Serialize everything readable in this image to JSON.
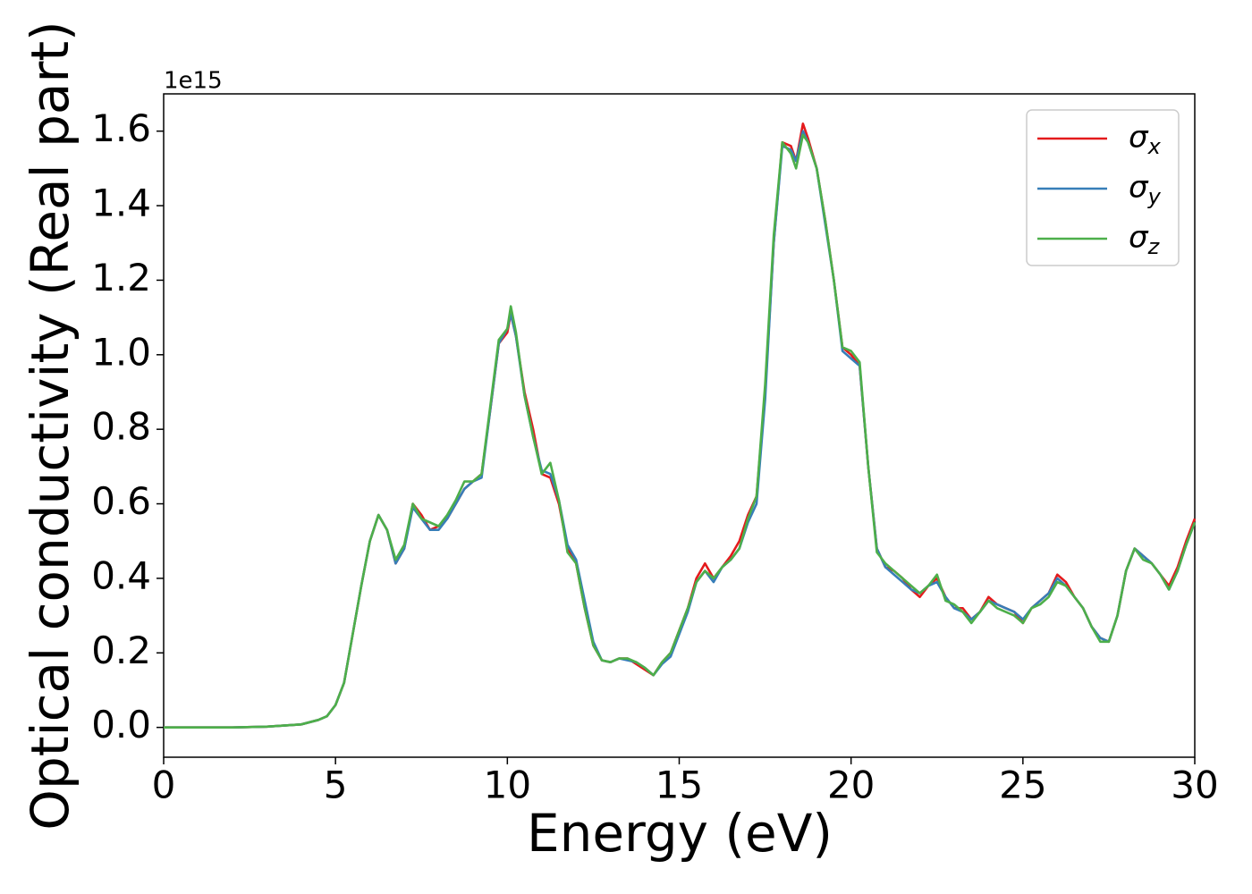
{
  "chart_data": {
    "type": "line",
    "xlabel": "Energy (eV)",
    "ylabel": "Optical conductivity (Real part)",
    "y_offset_label": "1e15",
    "x": [
      0,
      1,
      2,
      3,
      4,
      4.5,
      4.75,
      5,
      5.25,
      5.5,
      5.75,
      6,
      6.25,
      6.5,
      6.75,
      7,
      7.25,
      7.5,
      7.75,
      8,
      8.25,
      8.5,
      8.75,
      9,
      9.25,
      9.5,
      9.75,
      10,
      10.1,
      10.25,
      10.5,
      10.75,
      11,
      11.25,
      11.5,
      11.75,
      12,
      12.25,
      12.5,
      12.75,
      13,
      13.25,
      13.5,
      13.75,
      14,
      14.25,
      14.5,
      14.75,
      15,
      15.25,
      15.5,
      15.75,
      16,
      16.25,
      16.5,
      16.75,
      17,
      17.25,
      17.5,
      17.75,
      18,
      18.25,
      18.4,
      18.6,
      18.75,
      19,
      19.25,
      19.5,
      19.75,
      20,
      20.25,
      20.5,
      20.75,
      21,
      21.25,
      21.5,
      21.75,
      22,
      22.25,
      22.5,
      22.75,
      23,
      23.25,
      23.5,
      23.75,
      24,
      24.25,
      24.5,
      24.75,
      25,
      25.25,
      25.5,
      25.75,
      26,
      26.25,
      26.5,
      26.75,
      27,
      27.25,
      27.5,
      27.75,
      28,
      28.25,
      28.5,
      28.75,
      29,
      29.25,
      29.5,
      29.75,
      30
    ],
    "series": [
      {
        "name": "σx",
        "color": "#e41a1c",
        "values": [
          0,
          0,
          0,
          0.002,
          0.008,
          0.02,
          0.03,
          0.06,
          0.12,
          0.25,
          0.38,
          0.5,
          0.57,
          0.53,
          0.44,
          0.48,
          0.6,
          0.57,
          0.53,
          0.54,
          0.56,
          0.6,
          0.64,
          0.66,
          0.68,
          0.85,
          1.03,
          1.06,
          1.11,
          1.05,
          0.9,
          0.8,
          0.68,
          0.67,
          0.6,
          0.48,
          0.44,
          0.32,
          0.22,
          0.18,
          0.175,
          0.185,
          0.185,
          0.17,
          0.155,
          0.14,
          0.175,
          0.2,
          0.26,
          0.32,
          0.4,
          0.44,
          0.4,
          0.43,
          0.46,
          0.5,
          0.57,
          0.62,
          0.9,
          1.3,
          1.57,
          1.56,
          1.52,
          1.62,
          1.58,
          1.5,
          1.36,
          1.2,
          1.02,
          1.0,
          0.97,
          0.7,
          0.48,
          0.43,
          0.42,
          0.4,
          0.37,
          0.35,
          0.38,
          0.4,
          0.35,
          0.32,
          0.32,
          0.29,
          0.31,
          0.35,
          0.33,
          0.32,
          0.31,
          0.28,
          0.32,
          0.34,
          0.36,
          0.41,
          0.39,
          0.35,
          0.32,
          0.27,
          0.24,
          0.23,
          0.3,
          0.42,
          0.48,
          0.46,
          0.44,
          0.41,
          0.38,
          0.43,
          0.5,
          0.56
        ]
      },
      {
        "name": "σy",
        "color": "#377eb8",
        "values": [
          0,
          0,
          0,
          0.002,
          0.008,
          0.02,
          0.03,
          0.06,
          0.12,
          0.25,
          0.38,
          0.5,
          0.57,
          0.53,
          0.44,
          0.48,
          0.59,
          0.56,
          0.53,
          0.53,
          0.56,
          0.6,
          0.64,
          0.66,
          0.67,
          0.85,
          1.03,
          1.07,
          1.11,
          1.05,
          0.89,
          0.78,
          0.69,
          0.68,
          0.61,
          0.49,
          0.45,
          0.34,
          0.23,
          0.18,
          0.175,
          0.185,
          0.18,
          0.175,
          0.16,
          0.14,
          0.17,
          0.19,
          0.25,
          0.31,
          0.39,
          0.42,
          0.39,
          0.43,
          0.45,
          0.48,
          0.55,
          0.6,
          0.88,
          1.3,
          1.56,
          1.55,
          1.52,
          1.6,
          1.57,
          1.5,
          1.35,
          1.2,
          1.01,
          0.99,
          0.97,
          0.7,
          0.48,
          0.43,
          0.41,
          0.39,
          0.37,
          0.36,
          0.38,
          0.39,
          0.35,
          0.32,
          0.31,
          0.29,
          0.31,
          0.34,
          0.33,
          0.32,
          0.31,
          0.29,
          0.32,
          0.34,
          0.36,
          0.4,
          0.38,
          0.35,
          0.32,
          0.27,
          0.24,
          0.23,
          0.3,
          0.42,
          0.48,
          0.46,
          0.44,
          0.41,
          0.37,
          0.42,
          0.49,
          0.55
        ]
      },
      {
        "name": "σz",
        "color": "#4daf4a",
        "values": [
          0,
          0,
          0,
          0.002,
          0.008,
          0.02,
          0.03,
          0.06,
          0.12,
          0.25,
          0.38,
          0.5,
          0.57,
          0.53,
          0.45,
          0.49,
          0.6,
          0.56,
          0.55,
          0.54,
          0.57,
          0.61,
          0.66,
          0.66,
          0.68,
          0.86,
          1.04,
          1.07,
          1.13,
          1.06,
          0.89,
          0.78,
          0.68,
          0.71,
          0.61,
          0.47,
          0.44,
          0.32,
          0.22,
          0.18,
          0.175,
          0.185,
          0.185,
          0.175,
          0.16,
          0.14,
          0.175,
          0.2,
          0.26,
          0.32,
          0.39,
          0.42,
          0.4,
          0.43,
          0.45,
          0.48,
          0.56,
          0.62,
          0.92,
          1.32,
          1.57,
          1.54,
          1.5,
          1.59,
          1.57,
          1.5,
          1.36,
          1.2,
          1.02,
          1.01,
          0.98,
          0.7,
          0.47,
          0.44,
          0.42,
          0.4,
          0.38,
          0.36,
          0.38,
          0.41,
          0.34,
          0.33,
          0.31,
          0.28,
          0.31,
          0.34,
          0.32,
          0.31,
          0.3,
          0.28,
          0.32,
          0.33,
          0.35,
          0.39,
          0.38,
          0.35,
          0.32,
          0.27,
          0.23,
          0.23,
          0.3,
          0.42,
          0.48,
          0.45,
          0.44,
          0.41,
          0.37,
          0.42,
          0.49,
          0.55
        ]
      }
    ],
    "xlim": [
      0,
      30
    ],
    "xticks": [
      0,
      5,
      10,
      15,
      20,
      25,
      30
    ],
    "ylim": [
      -0.08,
      1.7
    ],
    "yticks": [
      {
        "value": 0,
        "label": "0.0"
      },
      0.2,
      0.4,
      0.6,
      0.8,
      {
        "value": 1,
        "label": "1.0"
      },
      1.2,
      1.4,
      1.6
    ],
    "legend": "upper right",
    "grid": false
  }
}
